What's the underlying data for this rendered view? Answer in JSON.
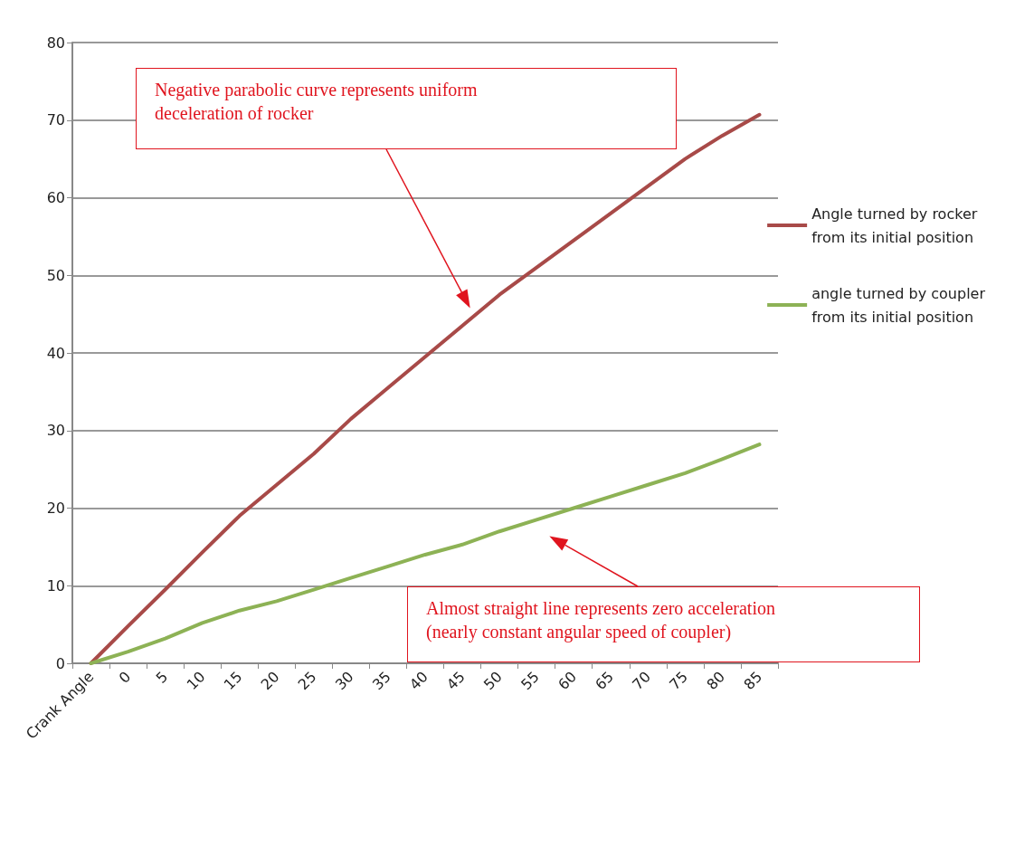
{
  "chart_data": {
    "type": "line",
    "categories": [
      "Crank Angle",
      "0",
      "5",
      "10",
      "15",
      "20",
      "25",
      "30",
      "35",
      "40",
      "45",
      "50",
      "55",
      "60",
      "65",
      "70",
      "75",
      "80",
      "85"
    ],
    "series": [
      {
        "name": "Angle turned by rocker\nfrom its initial position",
        "color": "#a84a48",
        "values": [
          0,
          4.8,
          9.5,
          14.3,
          19,
          23,
          27,
          31.5,
          35.5,
          39.5,
          43.5,
          47.5,
          51,
          54.5,
          58,
          61.5,
          65,
          68,
          70.7
        ]
      },
      {
        "name": "angle turned by coupler\nfrom its initial position",
        "color": "#8db255",
        "values": [
          0,
          1.5,
          3.2,
          5.2,
          6.8,
          8,
          9.5,
          11,
          12.5,
          14,
          15.3,
          17,
          18.5,
          20,
          21.5,
          23,
          24.5,
          26.3,
          28.2
        ]
      }
    ],
    "ylim": [
      0,
      80
    ],
    "yticks": [
      0,
      10,
      20,
      30,
      40,
      50,
      60,
      70,
      80
    ],
    "grid": "y",
    "legend": "right",
    "marker": "none",
    "line_style": "solid",
    "annotations": [
      "Negative parabolic curve represents uniform\ndeceleration of rocker",
      "Almost straight line represents zero acceleration\n(nearly constant angular speed of coupler)"
    ]
  }
}
